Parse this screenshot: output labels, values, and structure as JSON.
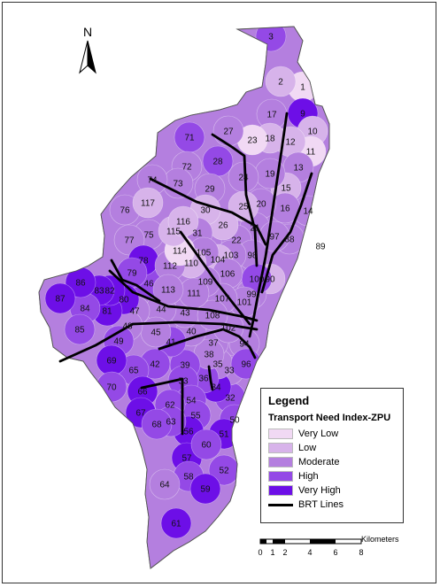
{
  "legend": {
    "title": "Legend",
    "subtitle": "Transport Need Index-ZPU",
    "classes": [
      {
        "label": "Very Low",
        "color": "#f1d9f4"
      },
      {
        "label": "Low",
        "color": "#d7b3ea"
      },
      {
        "label": "Moderate",
        "color": "#b47fdf"
      },
      {
        "label": "High",
        "color": "#9449e6"
      },
      {
        "label": "Very High",
        "color": "#6d0fe7"
      }
    ],
    "lines_label": "BRT Lines"
  },
  "north_arrow": {
    "label": "N"
  },
  "scale_bar": {
    "unit": "Kilometers",
    "ticks": [
      "0",
      "1",
      "2",
      "4",
      "6",
      "8"
    ]
  },
  "zones": [
    {
      "id": "1",
      "cls": 0
    },
    {
      "id": "2",
      "cls": 1
    },
    {
      "id": "3",
      "cls": 3
    },
    {
      "id": "9",
      "cls": 4
    },
    {
      "id": "10",
      "cls": 1
    },
    {
      "id": "11",
      "cls": 0
    },
    {
      "id": "12",
      "cls": 1
    },
    {
      "id": "13",
      "cls": 2
    },
    {
      "id": "14",
      "cls": 2
    },
    {
      "id": "15",
      "cls": 1
    },
    {
      "id": "16",
      "cls": 2
    },
    {
      "id": "17",
      "cls": 2
    },
    {
      "id": "18",
      "cls": 1
    },
    {
      "id": "19",
      "cls": 2
    },
    {
      "id": "20",
      "cls": 2
    },
    {
      "id": "21",
      "cls": 2
    },
    {
      "id": "22",
      "cls": 2
    },
    {
      "id": "23",
      "cls": 0
    },
    {
      "id": "24",
      "cls": 2
    },
    {
      "id": "25",
      "cls": 1
    },
    {
      "id": "26",
      "cls": 1
    },
    {
      "id": "27",
      "cls": 2
    },
    {
      "id": "28",
      "cls": 3
    },
    {
      "id": "29",
      "cls": 2
    },
    {
      "id": "30",
      "cls": 1
    },
    {
      "id": "31",
      "cls": 2
    },
    {
      "id": "32",
      "cls": 3
    },
    {
      "id": "33",
      "cls": 2
    },
    {
      "id": "34",
      "cls": 4
    },
    {
      "id": "35",
      "cls": 2
    },
    {
      "id": "36",
      "cls": 3
    },
    {
      "id": "37",
      "cls": 2
    },
    {
      "id": "38",
      "cls": 2
    },
    {
      "id": "39",
      "cls": 3
    },
    {
      "id": "40",
      "cls": 2
    },
    {
      "id": "41",
      "cls": 3
    },
    {
      "id": "42",
      "cls": 3
    },
    {
      "id": "43",
      "cls": 2
    },
    {
      "id": "44",
      "cls": 2
    },
    {
      "id": "45",
      "cls": 2
    },
    {
      "id": "46",
      "cls": 3
    },
    {
      "id": "47",
      "cls": 2
    },
    {
      "id": "48",
      "cls": 2
    },
    {
      "id": "49",
      "cls": 3
    },
    {
      "id": "50",
      "cls": 3
    },
    {
      "id": "51",
      "cls": 4
    },
    {
      "id": "52",
      "cls": 3
    },
    {
      "id": "53",
      "cls": 3
    },
    {
      "id": "54",
      "cls": 3
    },
    {
      "id": "55",
      "cls": 3
    },
    {
      "id": "56",
      "cls": 4
    },
    {
      "id": "57",
      "cls": 4
    },
    {
      "id": "58",
      "cls": 3
    },
    {
      "id": "59",
      "cls": 4
    },
    {
      "id": "60",
      "cls": 3
    },
    {
      "id": "61",
      "cls": 4
    },
    {
      "id": "62",
      "cls": 3
    },
    {
      "id": "63",
      "cls": 3
    },
    {
      "id": "64",
      "cls": 2
    },
    {
      "id": "65",
      "cls": 3
    },
    {
      "id": "66",
      "cls": 4
    },
    {
      "id": "67",
      "cls": 4
    },
    {
      "id": "68",
      "cls": 3
    },
    {
      "id": "69",
      "cls": 4
    },
    {
      "id": "70",
      "cls": 3
    },
    {
      "id": "71",
      "cls": 3
    },
    {
      "id": "72",
      "cls": 2
    },
    {
      "id": "73",
      "cls": 2
    },
    {
      "id": "74",
      "cls": 2
    },
    {
      "id": "75",
      "cls": 2
    },
    {
      "id": "76",
      "cls": 2
    },
    {
      "id": "77",
      "cls": 2
    },
    {
      "id": "78",
      "cls": 4
    },
    {
      "id": "79",
      "cls": 3
    },
    {
      "id": "80",
      "cls": 4
    },
    {
      "id": "81",
      "cls": 4
    },
    {
      "id": "82",
      "cls": 4
    },
    {
      "id": "83",
      "cls": 4
    },
    {
      "id": "84",
      "cls": 3
    },
    {
      "id": "85",
      "cls": 3
    },
    {
      "id": "86",
      "cls": 4
    },
    {
      "id": "87",
      "cls": 4
    },
    {
      "id": "88",
      "cls": 2
    },
    {
      "id": "89",
      "cls": 3
    },
    {
      "id": "90",
      "cls": 1
    },
    {
      "id": "94",
      "cls": 2
    },
    {
      "id": "96",
      "cls": 3
    },
    {
      "id": "97",
      "cls": 2
    },
    {
      "id": "98",
      "cls": 2
    },
    {
      "id": "99",
      "cls": 2
    },
    {
      "id": "100",
      "cls": 3
    },
    {
      "id": "101",
      "cls": 2
    },
    {
      "id": "102",
      "cls": 2
    },
    {
      "id": "103",
      "cls": 2
    },
    {
      "id": "104",
      "cls": 1
    },
    {
      "id": "105",
      "cls": 2
    },
    {
      "id": "106",
      "cls": 2
    },
    {
      "id": "107",
      "cls": 2
    },
    {
      "id": "108",
      "cls": 2
    },
    {
      "id": "109",
      "cls": 2
    },
    {
      "id": "110",
      "cls": 1
    },
    {
      "id": "111",
      "cls": 2
    },
    {
      "id": "112",
      "cls": 2
    },
    {
      "id": "113",
      "cls": 2
    },
    {
      "id": "114",
      "cls": 0
    },
    {
      "id": "115",
      "cls": 1
    },
    {
      "id": "116",
      "cls": 1
    },
    {
      "id": "117",
      "cls": 1
    }
  ]
}
